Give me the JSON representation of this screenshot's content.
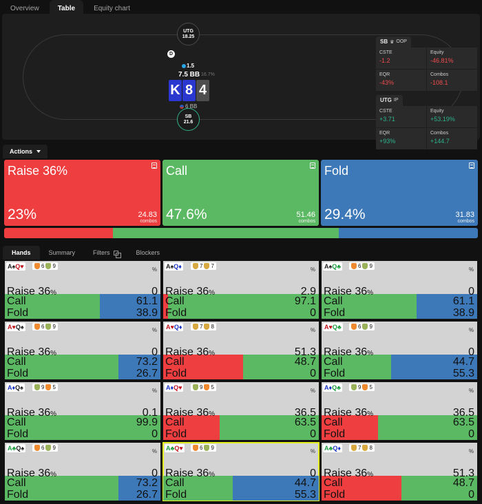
{
  "top_tabs": [
    {
      "label": "Overview",
      "active": false
    },
    {
      "label": "Table",
      "active": true
    },
    {
      "label": "Equity chart",
      "active": false
    }
  ],
  "table": {
    "utg": {
      "name": "UTG",
      "stack": "18.25"
    },
    "sb": {
      "name": "SB",
      "stack": "21.6"
    },
    "dealer": "D",
    "bet": "1.5",
    "pot": "7.5 BB",
    "pot_pct": "16.7%",
    "board": [
      "K",
      "8",
      "4"
    ],
    "effective_stack": "6 BB"
  },
  "stats": {
    "sb": {
      "name": "SB",
      "tag": "OOP",
      "cste": "-1.2",
      "equity": "-46.81%",
      "eqr": "-43%",
      "combos": "-108.1"
    },
    "utg": {
      "name": "UTG",
      "tag": "IP",
      "cste": "+3.71",
      "equity": "+53.19%",
      "eqr": "+93%",
      "combos": "+144.7"
    },
    "labels": {
      "cste": "CSTE",
      "equity": "Equity",
      "eqr": "EQR",
      "combos": "Combos"
    }
  },
  "actions": {
    "tab_label": "Actions",
    "items": [
      {
        "name": "Raise 36%",
        "pct": "23%",
        "combos": "24.83",
        "combos_label": "combos",
        "color": "#ef3e3f"
      },
      {
        "name": "Call",
        "pct": "47.6%",
        "combos": "51.46",
        "combos_label": "combos",
        "color": "#5cb963"
      },
      {
        "name": "Fold",
        "pct": "29.4%",
        "combos": "31.83",
        "combos_label": "combos",
        "color": "#3d79b8"
      }
    ],
    "freq_bar": [
      23,
      47.6,
      29.4
    ]
  },
  "bottom_tabs": [
    {
      "label": "Hands",
      "active": true
    },
    {
      "label": "Summary",
      "active": false
    },
    {
      "label": "Filters",
      "active": false
    },
    {
      "label": "Blockers",
      "active": false
    }
  ],
  "hand_labels": {
    "raise": "Raise 36",
    "call": "Call",
    "fold": "Fold",
    "pct": "%"
  },
  "hands": [
    {
      "c1": "A",
      "s1": "♠",
      "k1": "sK",
      "c2": "Q",
      "s2": "♥",
      "k2": "sR",
      "b1": "6",
      "b1c": "sh-o",
      "b2": "9",
      "b2c": "sh-g",
      "raise": "0",
      "call": "61.1",
      "fold": "38.9"
    },
    {
      "c1": "A",
      "s1": "♠",
      "k1": "sK",
      "c2": "Q",
      "s2": "♦",
      "k2": "sB",
      "b1": "7",
      "b1c": "sh-y",
      "b2": "7",
      "b2c": "sh-y",
      "raise": "2.9",
      "call": "97.1",
      "fold": "0"
    },
    {
      "c1": "A",
      "s1": "♠",
      "k1": "sK",
      "c2": "Q",
      "s2": "♣",
      "k2": "sG",
      "b1": "6",
      "b1c": "sh-o",
      "b2": "9",
      "b2c": "sh-g",
      "raise": "0",
      "call": "61.1",
      "fold": "38.9"
    },
    {
      "c1": "A",
      "s1": "♥",
      "k1": "sR",
      "c2": "Q",
      "s2": "♠",
      "k2": "sK",
      "b1": "6",
      "b1c": "sh-o",
      "b2": "9",
      "b2c": "sh-g",
      "raise": "0",
      "call": "73.2",
      "fold": "26.7"
    },
    {
      "c1": "A",
      "s1": "♥",
      "k1": "sR",
      "c2": "Q",
      "s2": "♦",
      "k2": "sB",
      "b1": "7",
      "b1c": "sh-y",
      "b2": "8",
      "b2c": "sh-y",
      "raise": "51.3",
      "call": "48.7",
      "fold": "0"
    },
    {
      "c1": "A",
      "s1": "♥",
      "k1": "sR",
      "c2": "Q",
      "s2": "♣",
      "k2": "sG",
      "b1": "6",
      "b1c": "sh-o",
      "b2": "9",
      "b2c": "sh-g",
      "raise": "0",
      "call": "44.7",
      "fold": "55.3"
    },
    {
      "c1": "A",
      "s1": "♦",
      "k1": "sB",
      "c2": "Q",
      "s2": "♠",
      "k2": "sK",
      "b1": "9",
      "b1c": "sh-g",
      "b2": "5",
      "b2c": "sh-o",
      "raise": "0.1",
      "call": "99.9",
      "fold": "0"
    },
    {
      "c1": "A",
      "s1": "♦",
      "k1": "sB",
      "c2": "Q",
      "s2": "♥",
      "k2": "sR",
      "b1": "9",
      "b1c": "sh-g",
      "b2": "5",
      "b2c": "sh-o",
      "raise": "36.5",
      "call": "63.5",
      "fold": "0"
    },
    {
      "c1": "A",
      "s1": "♦",
      "k1": "sB",
      "c2": "Q",
      "s2": "♣",
      "k2": "sG",
      "b1": "9",
      "b1c": "sh-g",
      "b2": "5",
      "b2c": "sh-o",
      "raise": "36.5",
      "call": "63.5",
      "fold": "0"
    },
    {
      "c1": "A",
      "s1": "♣",
      "k1": "sG",
      "c2": "Q",
      "s2": "♠",
      "k2": "sK",
      "b1": "6",
      "b1c": "sh-o",
      "b2": "9",
      "b2c": "sh-g",
      "raise": "0",
      "call": "73.2",
      "fold": "26.7"
    },
    {
      "c1": "A",
      "s1": "♣",
      "k1": "sG",
      "c2": "Q",
      "s2": "♥",
      "k2": "sR",
      "b1": "6",
      "b1c": "sh-o",
      "b2": "9",
      "b2c": "sh-g",
      "raise": "0",
      "call": "44.7",
      "fold": "55.3",
      "selected": true
    },
    {
      "c1": "A",
      "s1": "♣",
      "k1": "sG",
      "c2": "Q",
      "s2": "♦",
      "k2": "sB",
      "b1": "7",
      "b1c": "sh-y",
      "b2": "8",
      "b2c": "sh-y",
      "raise": "51.3",
      "call": "48.7",
      "fold": "0"
    }
  ],
  "colors": {
    "raise": "#ef3e3f",
    "call": "#5cb963",
    "fold": "#3d79b8",
    "selected": "#e6f01e"
  }
}
